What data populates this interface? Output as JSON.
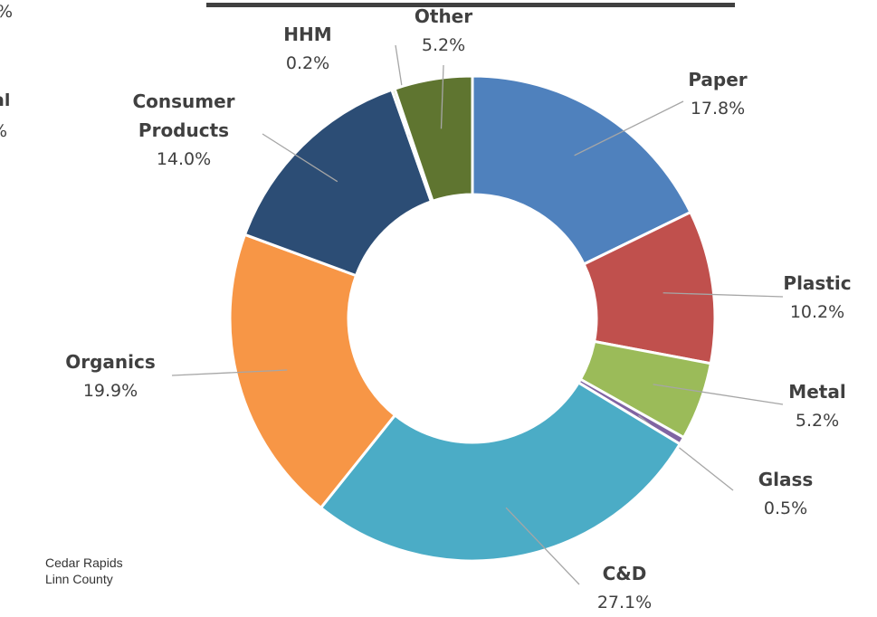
{
  "chart_data": {
    "type": "donut",
    "categories": [
      "Paper",
      "Plastic",
      "Metal",
      "Glass",
      "C&D",
      "Organics",
      "Consumer Products",
      "HHM",
      "Other"
    ],
    "values": [
      17.8,
      10.2,
      5.2,
      0.5,
      27.1,
      19.9,
      14.0,
      0.2,
      5.2
    ],
    "value_labels": [
      "17.8%",
      "10.2%",
      "5.2%",
      "0.5%",
      "27.1%",
      "19.9%",
      "14.0%",
      "0.2%",
      "5.2%"
    ],
    "colors": [
      "#4f81bd",
      "#c0504d",
      "#9bbb59",
      "#8064a2",
      "#4bacc6",
      "#f79646",
      "#2c4d75",
      "#8eb44a",
      "#5f7530"
    ],
    "footer": [
      "Cedar Rapids",
      "Linn County"
    ],
    "clipped_text": [
      "%",
      "al",
      "%"
    ]
  }
}
